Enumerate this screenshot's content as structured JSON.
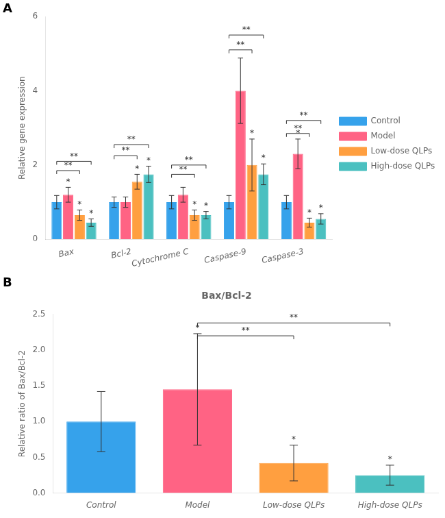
{
  "chart_data": [
    {
      "type": "bar",
      "panel_label": "A",
      "ylabel": "Relative gene expression",
      "categories": [
        "Bax",
        "Bcl-2",
        "Cytochrome C",
        "Caspase-9",
        "Caspase-3"
      ],
      "series": [
        {
          "name": "Control",
          "color": "#36a2eb",
          "values": [
            1.0,
            1.0,
            1.0,
            1.0,
            1.0
          ],
          "errors": [
            0.18,
            0.14,
            0.18,
            0.18,
            0.18
          ]
        },
        {
          "name": "Model",
          "color": "#ff6384",
          "values": [
            1.2,
            1.0,
            1.2,
            4.0,
            2.3
          ],
          "errors": [
            0.2,
            0.14,
            0.2,
            0.88,
            0.4
          ]
        },
        {
          "name": "Low-dose QLPs",
          "color": "#ff9f40",
          "values": [
            0.65,
            1.55,
            0.65,
            2.0,
            0.45
          ],
          "errors": [
            0.14,
            0.2,
            0.14,
            0.7,
            0.12
          ]
        },
        {
          "name": "High-dose QLPs",
          "color": "#4bc0c0",
          "values": [
            0.45,
            1.75,
            0.65,
            1.75,
            0.55
          ],
          "errors": [
            0.1,
            0.22,
            0.1,
            0.28,
            0.14
          ]
        }
      ],
      "ylim": [
        0,
        6
      ],
      "yticks": [
        0,
        2,
        4,
        6
      ],
      "grid": false,
      "legend": "right",
      "annotations": [
        {
          "text": "**",
          "group": "Bax",
          "from": "Control",
          "to": "Low-dose QLPs",
          "y": 1.85
        },
        {
          "text": "**",
          "group": "Bax",
          "from": "Control",
          "to": "High-dose QLPs",
          "y": 2.1
        },
        {
          "text": "**",
          "group": "Bcl-2",
          "from": "Control",
          "to": "Low-dose QLPs",
          "y": 2.25
        },
        {
          "text": "**",
          "group": "Bcl-2",
          "from": "Control",
          "to": "High-dose QLPs",
          "y": 2.55
        },
        {
          "text": "**",
          "group": "Cytochrome C",
          "from": "Control",
          "to": "Low-dose QLPs",
          "y": 1.75
        },
        {
          "text": "**",
          "group": "Cytochrome C",
          "from": "Control",
          "to": "High-dose QLPs",
          "y": 2.0
        },
        {
          "text": "**",
          "group": "Caspase-9",
          "from": "Control",
          "to": "Low-dose QLPs",
          "y": 5.1
        },
        {
          "text": "**",
          "group": "Caspase-9",
          "from": "Control",
          "to": "High-dose QLPs",
          "y": 5.5
        },
        {
          "text": "**",
          "group": "Caspase-3",
          "from": "Control",
          "to": "Low-dose QLPs",
          "y": 2.85
        },
        {
          "text": "**",
          "group": "Caspase-3",
          "from": "Control",
          "to": "High-dose QLPs",
          "y": 3.2
        },
        {
          "text": "*",
          "group": "Bax",
          "series": "Model"
        },
        {
          "text": "*",
          "group": "Bax",
          "series": "Low-dose QLPs"
        },
        {
          "text": "*",
          "group": "Bax",
          "series": "High-dose QLPs"
        },
        {
          "text": "*",
          "group": "Bcl-2",
          "series": "Low-dose QLPs"
        },
        {
          "text": "*",
          "group": "Bcl-2",
          "series": "High-dose QLPs"
        },
        {
          "text": "*",
          "group": "Cytochrome C",
          "series": "Low-dose QLPs"
        },
        {
          "text": "*",
          "group": "Cytochrome C",
          "series": "High-dose QLPs"
        },
        {
          "text": "*",
          "group": "Caspase-9",
          "series": "Low-dose QLPs"
        },
        {
          "text": "*",
          "group": "Caspase-9",
          "series": "High-dose QLPs"
        },
        {
          "text": "*",
          "group": "Caspase-3",
          "series": "Model"
        },
        {
          "text": "*",
          "group": "Caspase-3",
          "series": "Low-dose QLPs"
        },
        {
          "text": "*",
          "group": "Caspase-3",
          "series": "High-dose QLPs"
        }
      ]
    },
    {
      "type": "bar",
      "panel_label": "B",
      "title": "Bax/Bcl-2",
      "ylabel": "Relative ratio of Bax/Bcl-2",
      "categories": [
        "Control",
        "Model",
        "Low-dose QLPs",
        "High-dose QLPs"
      ],
      "values": [
        1.0,
        1.45,
        0.42,
        0.25
      ],
      "errors": [
        0.42,
        0.78,
        0.25,
        0.14
      ],
      "colors": [
        "#36a2eb",
        "#ff6384",
        "#ff9f40",
        "#4bc0c0"
      ],
      "ylim": [
        0,
        2.5
      ],
      "yticks": [
        {
          "value": 0,
          "label": "0.0"
        },
        0.5,
        {
          "value": 1,
          "label": "1.0"
        },
        1.5,
        {
          "value": 2,
          "label": "2.0"
        },
        2.5
      ],
      "grid": false,
      "annotations": [
        {
          "text": "**",
          "from": "Model",
          "to": "Low-dose QLPs",
          "y": 2.2
        },
        {
          "text": "**",
          "from": "Model",
          "to": "High-dose QLPs",
          "y": 2.38
        },
        {
          "text": "*",
          "category": "Model"
        },
        {
          "text": "*",
          "category": "Low-dose QLPs"
        },
        {
          "text": "*",
          "category": "High-dose QLPs"
        }
      ]
    }
  ]
}
